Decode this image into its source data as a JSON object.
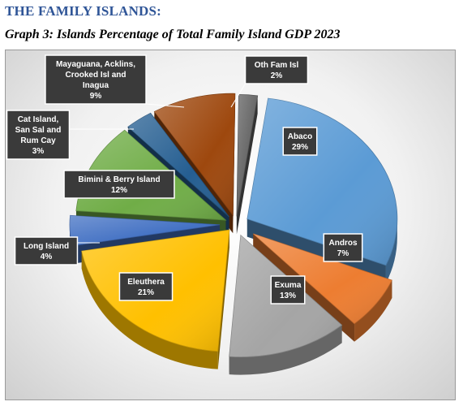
{
  "page": {
    "heading": "THE FAMILY ISLANDS:",
    "subtitle": "Graph 3: Islands Percentage of  Total Family Island GDP 2023"
  },
  "chart_data": {
    "type": "pie",
    "title": "",
    "unit": "%",
    "slices": [
      {
        "name": "Abaco",
        "value": 29,
        "label": "29%",
        "color": "#5b9bd5"
      },
      {
        "name": "Andros",
        "value": 7,
        "label": "7%",
        "color": "#ed7d31"
      },
      {
        "name": "Exuma",
        "value": 13,
        "label": "13%",
        "color": "#a5a5a5"
      },
      {
        "name": "Eleuthera",
        "value": 21,
        "label": "21%",
        "color": "#ffc000"
      },
      {
        "name": "Long Island",
        "value": 4,
        "label": "4%",
        "color": "#4472c4"
      },
      {
        "name": "Bimini & Berry Island",
        "value": 12,
        "label": "12%",
        "color": "#70ad47"
      },
      {
        "name": "Cat Island, San Sal and Rum Cay",
        "value": 3,
        "label": "3%",
        "color": "#255e91"
      },
      {
        "name": "Mayaguana, Acklins, Crooked Isl and Inagua",
        "value": 9,
        "label": "9%",
        "color": "#9e480e"
      },
      {
        "name": "Oth Fam Isl",
        "value": 2,
        "label": "2%",
        "color": "#636363"
      }
    ],
    "labels_display": [
      [
        "Abaco",
        "29%"
      ],
      [
        "Andros",
        "7%"
      ],
      [
        "Exuma",
        "13%"
      ],
      [
        "Eleuthera",
        "21%"
      ],
      [
        "Long Island",
        "4%"
      ],
      [
        "Bimini & Berry Island",
        "12%"
      ],
      [
        "Cat Island,",
        "San Sal and",
        "Rum Cay",
        "3%"
      ],
      [
        "Mayaguana, Acklins,",
        "Crooked Isl and",
        "Inagua",
        "9%"
      ],
      [
        "Oth Fam Isl",
        "2%"
      ]
    ],
    "style": "3d-exploded-pie",
    "legend": "none"
  }
}
